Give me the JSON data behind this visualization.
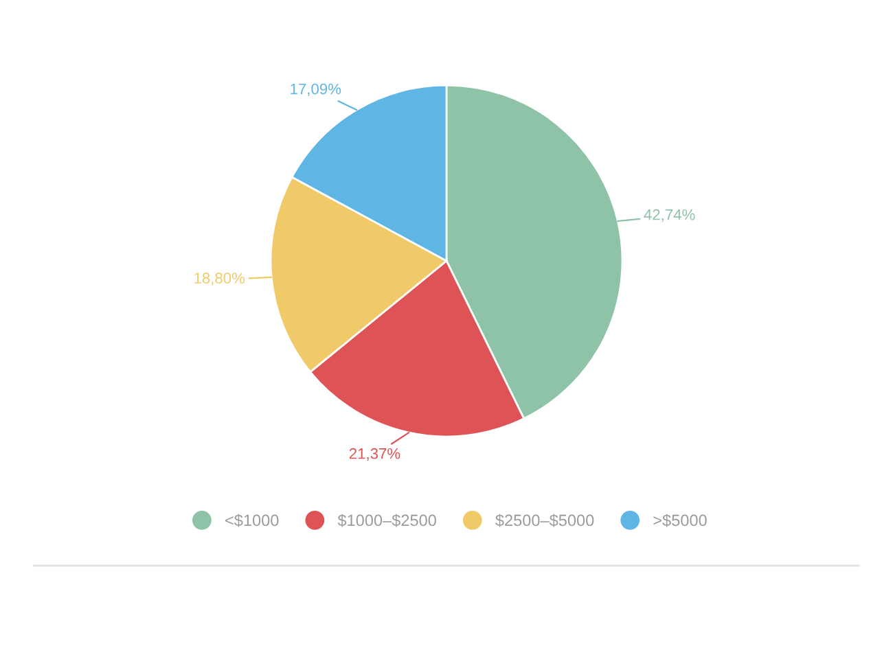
{
  "chart_data": {
    "type": "pie",
    "categories": [
      "<$1000",
      "$1000–$2500",
      "$2500–$5000",
      ">$5000"
    ],
    "values": [
      42.74,
      21.37,
      18.8,
      17.09
    ],
    "colors": [
      "#8ec3a7",
      "#de5355",
      "#f0ca68",
      "#5fb5e3"
    ],
    "value_labels": [
      "42,74%",
      "21,37%",
      "18,80%",
      "17,09%"
    ],
    "legend": "bottom"
  }
}
